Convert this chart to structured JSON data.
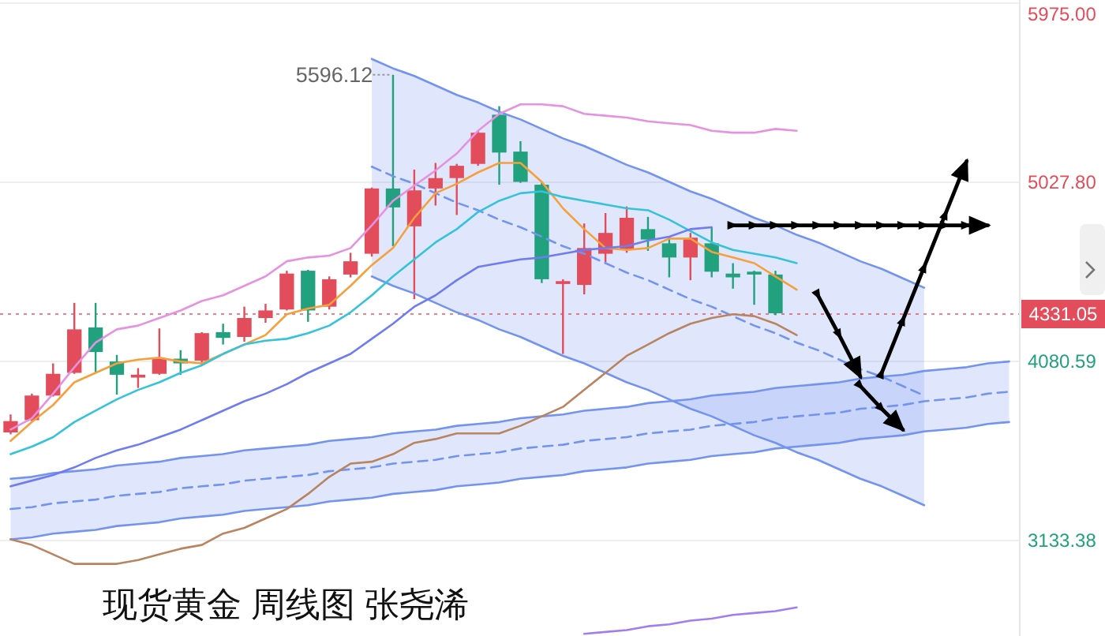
{
  "chart_data": {
    "type": "candlestick",
    "title": "现货黄金 周线图 张尧浠",
    "categories": [
      null,
      null,
      null,
      null,
      null,
      null,
      null,
      null,
      null,
      null,
      null,
      null,
      null,
      null,
      null,
      null,
      null,
      null,
      null,
      null,
      null,
      null,
      null,
      null,
      null,
      null,
      null,
      null,
      null,
      null,
      null,
      null,
      null,
      null,
      null,
      null,
      null,
      null,
      null,
      null,
      null,
      null,
      null,
      null,
      null,
      null,
      null,
      null
    ],
    "ohlc": [
      [
        3705,
        3800,
        3695,
        3765
      ],
      [
        3770,
        3910,
        3765,
        3900
      ],
      [
        3900,
        4070,
        3895,
        4015
      ],
      [
        4020,
        4390,
        4015,
        4250
      ],
      [
        4260,
        4390,
        4020,
        4130
      ],
      [
        4080,
        4115,
        3905,
        4010
      ],
      [
        3995,
        4045,
        3940,
        4010
      ],
      [
        4015,
        4255,
        4010,
        4095
      ],
      [
        4095,
        4140,
        4010,
        4070
      ],
      [
        4085,
        4235,
        4060,
        4230
      ],
      [
        4235,
        4280,
        4170,
        4205
      ],
      [
        4210,
        4370,
        4185,
        4310
      ],
      [
        4310,
        4385,
        4285,
        4350
      ],
      [
        4355,
        4560,
        4350,
        4545
      ],
      [
        4560,
        4565,
        4290,
        4350
      ],
      [
        4370,
        4530,
        4355,
        4515
      ],
      [
        4540,
        4655,
        4525,
        4610
      ],
      [
        4650,
        5000,
        4635,
        4995
      ],
      [
        4995,
        5596.12,
        4690,
        4895
      ],
      [
        4795,
        5095,
        4410,
        4985
      ],
      [
        4995,
        5130,
        4905,
        5050
      ],
      [
        5050,
        5125,
        4855,
        5115
      ],
      [
        5125,
        5300,
        5115,
        5290
      ],
      [
        5385,
        5430,
        5015,
        5185
      ],
      [
        5190,
        5245,
        5025,
        5030
      ],
      [
        5015,
        5025,
        4495,
        4515
      ],
      [
        4490,
        4515,
        4120,
        4505
      ],
      [
        4485,
        4810,
        4435,
        4680
      ],
      [
        4650,
        4865,
        4605,
        4760
      ],
      [
        4675,
        4900,
        4655,
        4840
      ],
      [
        4780,
        4845,
        4665,
        4725
      ],
      [
        4705,
        4740,
        4525,
        4630
      ],
      [
        4630,
        4760,
        4510,
        4735
      ],
      [
        4705,
        4790,
        4525,
        4555
      ],
      [
        4545,
        4600,
        4465,
        4525
      ],
      [
        4555,
        4560,
        4380,
        4540
      ],
      [
        4540,
        4560,
        4325,
        4335
      ],
      null,
      null,
      null,
      null,
      null,
      null,
      null,
      null,
      null,
      null,
      null
    ],
    "colors": [
      "#e34c5a",
      "#e34c5a",
      "#e34c5a",
      "#e34c5a",
      "#21a17e",
      "#21a17e",
      "#e34c5a",
      "#e34c5a",
      "#21a17e",
      "#e34c5a",
      "#21a17e",
      "#e34c5a",
      "#e34c5a",
      "#e34c5a",
      "#21a17e",
      "#e34c5a",
      "#e34c5a",
      "#e34c5a",
      "#21a17e",
      "#e34c5a",
      "#e34c5a",
      "#e34c5a",
      "#e34c5a",
      "#21a17e",
      "#21a17e",
      "#21a17e",
      "#e34c5a",
      "#e34c5a",
      "#e34c5a",
      "#e34c5a",
      "#21a17e",
      "#21a17e",
      "#e34c5a",
      "#21a17e",
      "#21a17e",
      "#21a17e",
      "#21a17e",
      null,
      null,
      null,
      null,
      null,
      null,
      null,
      null,
      null,
      null,
      null
    ],
    "series": [
      {
        "type": "line",
        "color": "#7393f0",
        "line_style": "dashed",
        "values": [
          3300,
          3310,
          3330,
          3340,
          3350,
          3370,
          3380,
          3390,
          3410,
          3420,
          3430,
          3450,
          3460,
          3470,
          3480,
          3500,
          3510,
          3520,
          3540,
          3550,
          3560,
          3580,
          3590,
          3600,
          3620,
          3630,
          3640,
          3660,
          3670,
          3680,
          3700,
          3710,
          3720,
          3740,
          3750,
          3760,
          3780,
          3790,
          3800,
          3810,
          3830,
          3840,
          3850,
          3870,
          3880,
          3890,
          3910,
          3920
        ],
        "lower": [
          3140,
          3150,
          3170,
          3180,
          3190,
          3210,
          3220,
          3230,
          3250,
          3260,
          3270,
          3290,
          3300,
          3310,
          3320,
          3340,
          3350,
          3360,
          3380,
          3390,
          3400,
          3420,
          3430,
          3440,
          3460,
          3470,
          3480,
          3500,
          3510,
          3520,
          3540,
          3550,
          3560,
          3580,
          3590,
          3600,
          3620,
          3630,
          3640,
          3650,
          3670,
          3680,
          3690,
          3710,
          3720,
          3730,
          3750,
          3760
        ],
        "upper": [
          3460,
          3470,
          3490,
          3500,
          3510,
          3530,
          3540,
          3550,
          3570,
          3580,
          3590,
          3610,
          3620,
          3630,
          3640,
          3660,
          3670,
          3680,
          3700,
          3710,
          3720,
          3740,
          3750,
          3760,
          3780,
          3790,
          3800,
          3820,
          3830,
          3840,
          3860,
          3870,
          3880,
          3900,
          3910,
          3920,
          3940,
          3950,
          3960,
          3970,
          3990,
          4000,
          4010,
          4030,
          4040,
          4050,
          4070,
          4080
        ]
      },
      {
        "type": "line",
        "color": "#7393f0",
        "values": [
          3460,
          3470,
          3490,
          3500,
          3510,
          3530,
          3540,
          3550,
          3570,
          3580,
          3590,
          3610,
          3620,
          3630,
          3640,
          3660,
          3670,
          3680,
          3700,
          3710,
          3720,
          3740,
          3750,
          3760,
          3780,
          3790,
          3800,
          3820,
          3830,
          3840,
          3860,
          3870,
          3880,
          3900,
          3910,
          3920,
          3940,
          3950,
          3960,
          3970,
          3990,
          4000,
          4010,
          4030,
          4040,
          4050,
          4070,
          4080
        ]
      },
      {
        "type": "line",
        "color": "#7393f0",
        "values": [
          3140,
          3150,
          3170,
          3180,
          3190,
          3210,
          3220,
          3230,
          3250,
          3260,
          3270,
          3290,
          3300,
          3310,
          3320,
          3340,
          3350,
          3360,
          3380,
          3390,
          3400,
          3420,
          3430,
          3440,
          3460,
          3470,
          3480,
          3500,
          3510,
          3520,
          3540,
          3550,
          3560,
          3580,
          3590,
          3600,
          3620,
          3630,
          3640,
          3650,
          3670,
          3680,
          3690,
          3710,
          3720,
          3730,
          3750,
          3760
        ]
      },
      {
        "type": "line",
        "color": "#7393f0",
        "line_style": "dashed",
        "values": [
          null,
          null,
          null,
          null,
          null,
          null,
          null,
          null,
          null,
          null,
          null,
          null,
          null,
          null,
          null,
          null,
          null,
          5110,
          5060,
          5020,
          4970,
          4920,
          4880,
          4830,
          4790,
          4740,
          4690,
          4650,
          4600,
          4550,
          4510,
          4460,
          4410,
          4370,
          4320,
          4270,
          4230,
          4180,
          4140,
          4090,
          4040,
          4000,
          3950,
          3900,
          null,
          null,
          null,
          null
        ],
        "lower": [
          null,
          null,
          null,
          null,
          null,
          null,
          null,
          null,
          null,
          null,
          null,
          null,
          null,
          null,
          null,
          null,
          null,
          4530,
          4480,
          4440,
          4390,
          4340,
          4300,
          4250,
          4210,
          4160,
          4110,
          4070,
          4020,
          3970,
          3930,
          3880,
          3830,
          3790,
          3740,
          3690,
          3650,
          3600,
          3560,
          3510,
          3460,
          3420,
          3370,
          3320,
          null,
          null,
          null,
          null
        ],
        "upper": [
          null,
          null,
          null,
          null,
          null,
          null,
          null,
          null,
          null,
          null,
          null,
          null,
          null,
          null,
          null,
          null,
          null,
          5680,
          5630,
          5590,
          5540,
          5490,
          5450,
          5400,
          5360,
          5310,
          5260,
          5220,
          5170,
          5120,
          5080,
          5030,
          4980,
          4940,
          4890,
          4840,
          4800,
          4750,
          4710,
          4660,
          4610,
          4570,
          4520,
          4470,
          null,
          null,
          null,
          null
        ]
      },
      {
        "type": "line",
        "color": "#7393f0",
        "values": [
          null,
          null,
          null,
          null,
          null,
          null,
          null,
          null,
          null,
          null,
          null,
          null,
          null,
          null,
          null,
          null,
          null,
          5680,
          5630,
          5590,
          5540,
          5490,
          5450,
          5400,
          5360,
          5310,
          5260,
          5220,
          5170,
          5120,
          5080,
          5030,
          4980,
          4940,
          4890,
          4840,
          4800,
          4750,
          4710,
          4660,
          4610,
          4570,
          4520,
          4470,
          null,
          null,
          null,
          null
        ]
      },
      {
        "type": "line",
        "color": "#7393f0",
        "values": [
          null,
          null,
          null,
          null,
          null,
          null,
          null,
          null,
          null,
          null,
          null,
          null,
          null,
          null,
          null,
          null,
          null,
          4530,
          4480,
          4440,
          4390,
          4340,
          4300,
          4250,
          4210,
          4160,
          4110,
          4070,
          4020,
          3970,
          3930,
          3880,
          3830,
          3790,
          3740,
          3690,
          3650,
          3600,
          3560,
          3510,
          3460,
          3420,
          3370,
          3320,
          null,
          null,
          null,
          null
        ]
      },
      {
        "type": "line",
        "color": "#e592e0",
        "values": [
          3720,
          3780,
          3910,
          4050,
          4180,
          4250,
          4270,
          4310,
          4350,
          4400,
          4430,
          4480,
          4530,
          4610,
          4630,
          4640,
          4680,
          4800,
          4930,
          5010,
          5090,
          5180,
          5300,
          5390,
          5440,
          5440,
          5430,
          5390,
          5380,
          5370,
          5350,
          5340,
          5330,
          5300,
          5290,
          5290,
          5310,
          5300,
          null,
          null,
          null,
          null,
          null,
          null,
          null,
          null,
          null,
          null
        ]
      },
      {
        "type": "line",
        "color": "#f5a03c",
        "values": [
          3660,
          3760,
          3850,
          3970,
          4020,
          4070,
          4090,
          4100,
          4080,
          4070,
          4120,
          4170,
          4220,
          4330,
          4360,
          4380,
          4480,
          4590,
          4680,
          4840,
          4970,
          5020,
          5080,
          5130,
          5130,
          5030,
          4890,
          4780,
          4680,
          4670,
          4680,
          4730,
          4730,
          4660,
          4630,
          4600,
          4530,
          4460,
          null,
          null,
          null,
          null,
          null,
          null,
          null,
          null,
          null,
          null
        ]
      },
      {
        "type": "line",
        "color": "#35c3dc",
        "values": [
          3590,
          3630,
          3680,
          3760,
          3820,
          3880,
          3930,
          3970,
          4020,
          4060,
          4120,
          4170,
          4190,
          4200,
          4230,
          4270,
          4340,
          4430,
          4530,
          4620,
          4710,
          4780,
          4870,
          4930,
          4970,
          4980,
          4950,
          4930,
          4910,
          4890,
          4880,
          4830,
          4770,
          4710,
          4670,
          4650,
          4630,
          4600,
          null,
          null,
          null,
          null,
          null,
          null,
          null,
          null,
          null,
          null
        ]
      },
      {
        "type": "line",
        "color": "#6f7bf0",
        "values": [
          3420,
          3450,
          3480,
          3520,
          3570,
          3610,
          3640,
          3680,
          3720,
          3770,
          3820,
          3870,
          3910,
          3960,
          4020,
          4070,
          4120,
          4200,
          4280,
          4370,
          4430,
          4510,
          4580,
          4600,
          4620,
          4630,
          4650,
          4670,
          4680,
          4690,
          4720,
          4740,
          4780,
          4790,
          null,
          null,
          null,
          null,
          null,
          null,
          null,
          null,
          null,
          null,
          null,
          null,
          null,
          null
        ]
      },
      {
        "type": "line",
        "color": "#b98460",
        "values": [
          3140,
          3110,
          3060,
          3010,
          3010,
          3010,
          3030,
          3060,
          3090,
          3110,
          3170,
          3200,
          3250,
          3300,
          3380,
          3470,
          3540,
          3550,
          3590,
          3650,
          3670,
          3700,
          3700,
          3700,
          3740,
          3790,
          3840,
          3930,
          4020,
          4110,
          4170,
          4230,
          4280,
          4310,
          4330,
          4320,
          4280,
          4220,
          null,
          null,
          null,
          null,
          null,
          null,
          null,
          null,
          null,
          null
        ]
      },
      {
        "type": "line",
        "color": "#a07ef0",
        "values": [
          null,
          null,
          null,
          null,
          null,
          null,
          null,
          null,
          null,
          null,
          null,
          null,
          null,
          null,
          null,
          null,
          null,
          null,
          null,
          null,
          null,
          null,
          null,
          null,
          null,
          null,
          null,
          2640,
          2650,
          2660,
          2680,
          2690,
          2710,
          2720,
          2740,
          2750,
          2760,
          2780,
          null,
          null,
          null,
          null,
          null,
          null,
          null,
          null,
          null,
          null
        ]
      },
      {
        "type": "line",
        "color": "#000000",
        "marker": "triangle",
        "values": [
          null,
          null,
          null,
          null,
          null,
          null,
          null,
          null,
          null,
          null,
          null,
          null,
          null,
          null,
          null,
          null,
          null,
          null,
          null,
          null,
          null,
          null,
          null,
          null,
          null,
          null,
          null,
          null,
          null,
          null,
          null,
          null,
          null,
          null,
          4800,
          4800,
          4800,
          4800,
          4800,
          4800,
          4800,
          4800,
          4800,
          4800,
          4800,
          4800,
          4800,
          null
        ]
      },
      {
        "type": "line",
        "color": "#000000",
        "marker": "triangle",
        "values": [
          null,
          null,
          null,
          null,
          null,
          null,
          null,
          null,
          null,
          null,
          null,
          null,
          null,
          null,
          null,
          null,
          null,
          null,
          null,
          null,
          null,
          null,
          null,
          null,
          null,
          null,
          null,
          null,
          null,
          null,
          null,
          null,
          null,
          null,
          null,
          null,
          null,
          null,
          4430,
          4220,
          4000,
          null,
          null,
          null,
          null,
          null,
          null,
          null
        ]
      },
      {
        "type": "line",
        "color": "#000000",
        "marker": "triangle",
        "values": [
          null,
          null,
          null,
          null,
          null,
          null,
          null,
          null,
          null,
          null,
          null,
          null,
          null,
          null,
          null,
          null,
          null,
          null,
          null,
          null,
          null,
          null,
          null,
          null,
          null,
          null,
          null,
          null,
          null,
          null,
          null,
          null,
          null,
          null,
          null,
          null,
          null,
          null,
          null,
          null,
          null,
          4020,
          4300,
          4580,
          4860,
          5140,
          null,
          null
        ]
      },
      {
        "type": "line",
        "color": "#000000",
        "marker": "triangle",
        "values": [
          null,
          null,
          null,
          null,
          null,
          null,
          null,
          null,
          null,
          null,
          null,
          null,
          null,
          null,
          null,
          null,
          null,
          null,
          null,
          null,
          null,
          null,
          null,
          null,
          null,
          null,
          null,
          null,
          null,
          null,
          null,
          null,
          null,
          null,
          null,
          null,
          null,
          null,
          null,
          null,
          3950,
          3830,
          3720,
          null,
          null,
          null,
          null,
          null
        ]
      }
    ],
    "ylim": [
      2628.5,
      5991.7
    ],
    "yticks": [
      3133.38,
      4080.59,
      {
        "value": 5027.8,
        "label": "5027.80"
      },
      {
        "value": 5975,
        "label": "5975.00"
      }
    ],
    "ref_lines": [
      {
        "axis": "y",
        "value": 4331.05,
        "label": "4331.05",
        "color": "#e34c5a",
        "line_style": "dotted"
      }
    ],
    "annotations": [
      "5596.12"
    ],
    "grid": "y",
    "tick_labels": "y"
  }
}
